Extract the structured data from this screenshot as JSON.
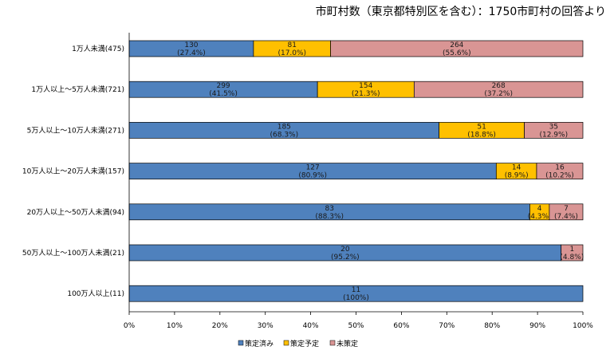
{
  "chart_data": {
    "type": "bar",
    "orientation": "horizontal",
    "stacked": "percent",
    "title": "市町村数（東京都特別区を含む）：1750市町村の回答より",
    "categories": [
      "1万人未満(475)",
      "1万人以上～5万人未満(721)",
      "5万人以上～10万人未満(271)",
      "10万人以上～20万人未満(157)",
      "20万人以上～50万人未満(94)",
      "50万人以上～100万人未満(21)",
      "100万人以上(11)"
    ],
    "series": [
      {
        "name": "策定済み",
        "color": "#4f81bd",
        "counts": [
          130,
          299,
          185,
          127,
          83,
          20,
          11
        ],
        "percent": [
          27.4,
          41.5,
          68.3,
          80.9,
          88.3,
          95.2,
          100
        ],
        "labels": [
          "(27.4%)",
          "(41.5%)",
          "(68.3%)",
          "(80.9%)",
          "(88.3%)",
          "(95.2%)",
          "(100%)"
        ]
      },
      {
        "name": "策定予定",
        "color": "#ffc000",
        "counts": [
          81,
          154,
          51,
          14,
          4,
          0,
          0
        ],
        "percent": [
          17.0,
          21.3,
          18.8,
          8.9,
          4.3,
          0,
          0
        ],
        "labels": [
          "(17.0%)",
          "(21.3%)",
          "(18.8%)",
          "(8.9%)",
          "(4.3%)",
          "",
          ""
        ]
      },
      {
        "name": "未策定",
        "color": "#d99594",
        "counts": [
          264,
          268,
          35,
          16,
          7,
          1,
          0
        ],
        "percent": [
          55.6,
          37.2,
          12.9,
          10.2,
          7.4,
          4.8,
          0
        ],
        "labels": [
          "(55.6%)",
          "(37.2%)",
          "(12.9%)",
          "(10.2%)",
          "(7.4%)",
          "(4.8%)",
          ""
        ]
      }
    ],
    "x_ticks": [
      "0%",
      "10%",
      "20%",
      "30%",
      "40%",
      "50%",
      "60%",
      "70%",
      "80%",
      "90%",
      "100%"
    ],
    "xlim": [
      0,
      100
    ],
    "grid": false,
    "legend_position": "bottom"
  }
}
